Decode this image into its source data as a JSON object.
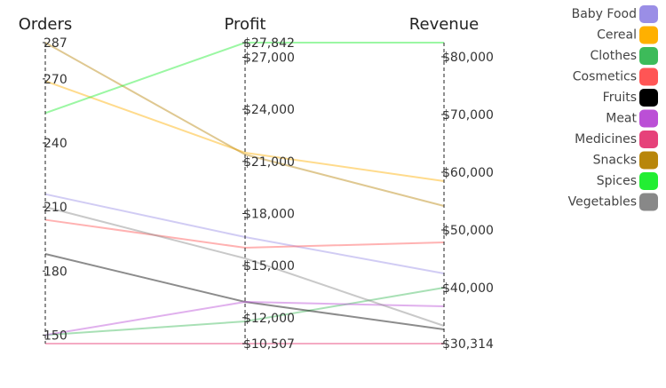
{
  "chart_data": {
    "type": "parallel",
    "axes": [
      {
        "name": "Orders",
        "ylim": [
          146,
          287
        ],
        "yticks": [
          287,
          270,
          240,
          210,
          180,
          150
        ]
      },
      {
        "name": "Profit",
        "ylim": [
          10507,
          27842
        ],
        "yticks": [
          {
            "value": 27842,
            "label": "$27,842"
          },
          {
            "value": 27000,
            "label": "$27,000"
          },
          {
            "value": 24000,
            "label": "$24,000"
          },
          {
            "value": 21000,
            "label": "$21,000"
          },
          {
            "value": 18000,
            "label": "$18,000"
          },
          {
            "value": 15000,
            "label": "$15,000"
          },
          {
            "value": 12000,
            "label": "$12,000"
          },
          {
            "value": 10507,
            "label": "$10,507"
          }
        ]
      },
      {
        "name": "Revenue",
        "ylim": [
          30314,
          82452
        ],
        "yticks": [
          {
            "value": 80000,
            "label": "$80,000"
          },
          {
            "value": 70000,
            "label": "$70,000"
          },
          {
            "value": 60000,
            "label": "$60,000"
          },
          {
            "value": 50000,
            "label": "$50,000"
          },
          {
            "value": 40000,
            "label": "$40,000"
          },
          {
            "value": 30314,
            "label": "$30,314"
          }
        ]
      }
    ],
    "series": [
      {
        "name": "Baby Food",
        "color": "#9a8ee6",
        "values": [
          216,
          16642,
          42464
        ]
      },
      {
        "name": "Cereal",
        "color": "#ffb000",
        "values": [
          269,
          21501,
          58460
        ]
      },
      {
        "name": "Clothes",
        "color": "#3dbb5a",
        "values": [
          150,
          11784,
          40003
        ]
      },
      {
        "name": "Cosmetics",
        "color": "#ff5555",
        "values": [
          204,
          16029,
          47847
        ]
      },
      {
        "name": "Fruits",
        "color": "#000000",
        "values": [
          188,
          12909,
          32775
        ]
      },
      {
        "name": "Meat",
        "color": "#bb4fd6",
        "values": [
          150,
          12909,
          36774
        ]
      },
      {
        "name": "Medicines",
        "color": "#e6427a",
        "values": [
          146,
          10507,
          30314
        ]
      },
      {
        "name": "Snacks",
        "color": "#b8860b",
        "values": [
          287,
          21398,
          54153
        ]
      },
      {
        "name": "Spices",
        "color": "#22ee33",
        "values": [
          254,
          27842,
          82452
        ]
      },
      {
        "name": "Vegetables",
        "color": "#888888",
        "values": [
          210,
          15415,
          33390
        ]
      }
    ],
    "legend": "top-right"
  }
}
